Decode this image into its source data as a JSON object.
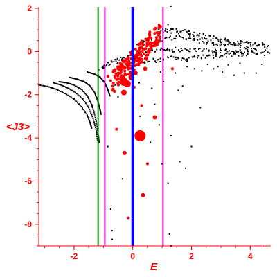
{
  "chart_data": {
    "type": "scatter",
    "xlabel": "E",
    "ylabel": "<J3>",
    "xlim": [
      -3.2,
      4.7
    ],
    "ylim": [
      -9.0,
      2.0
    ],
    "x_ticks": [
      -2,
      0,
      2,
      4
    ],
    "y_ticks": [
      2,
      0,
      -2,
      -4,
      -6,
      -8
    ],
    "grid": false,
    "colors": {
      "axis": "#ff0000",
      "background_points": "#000000",
      "highlighted_points": "#ff0000",
      "line_center": "#0000ff",
      "line_green": "#008000",
      "line_magenta": "#cc00cc"
    },
    "vertical_lines": [
      {
        "x": -1.18,
        "color": "#008000"
      },
      {
        "x": -0.95,
        "color": "#cc00cc"
      },
      {
        "x": 0.0,
        "color": "#0000ff"
      },
      {
        "x": 1.03,
        "color": "#cc00cc"
      }
    ],
    "black_curves": [
      {
        "points": [
          [
            -3.2,
            -1.55
          ],
          [
            -2.9,
            -1.62
          ],
          [
            -2.6,
            -1.75
          ],
          [
            -2.3,
            -1.95
          ],
          [
            -2.0,
            -2.2
          ],
          [
            -1.75,
            -2.55
          ],
          [
            -1.55,
            -2.95
          ],
          [
            -1.45,
            -3.3
          ],
          [
            -1.4,
            -3.55
          ]
        ]
      },
      {
        "points": [
          [
            -2.7,
            -1.45
          ],
          [
            -2.45,
            -1.55
          ],
          [
            -2.2,
            -1.7
          ],
          [
            -1.95,
            -1.9
          ],
          [
            -1.7,
            -2.2
          ],
          [
            -1.5,
            -2.6
          ],
          [
            -1.35,
            -3.1
          ],
          [
            -1.25,
            -3.6
          ],
          [
            -1.2,
            -4.1
          ]
        ]
      },
      {
        "points": [
          [
            -2.5,
            -1.4
          ],
          [
            -2.25,
            -1.45
          ],
          [
            -2.0,
            -1.55
          ],
          [
            -1.75,
            -1.75
          ],
          [
            -1.55,
            -2.05
          ],
          [
            -1.4,
            -2.45
          ],
          [
            -1.3,
            -2.9
          ],
          [
            -1.22,
            -3.4
          ],
          [
            -1.17,
            -3.9
          ],
          [
            -1.15,
            -4.2
          ]
        ]
      },
      {
        "points": [
          [
            -2.15,
            -1.2
          ],
          [
            -1.9,
            -1.28
          ],
          [
            -1.65,
            -1.4
          ],
          [
            -1.45,
            -1.6
          ],
          [
            -1.3,
            -1.9
          ],
          [
            -1.2,
            -2.25
          ],
          [
            -1.13,
            -2.6
          ],
          [
            -1.08,
            -2.9
          ]
        ]
      },
      {
        "points": [
          [
            -1.55,
            -0.95
          ],
          [
            -1.3,
            -1.05
          ],
          [
            -1.1,
            -1.2
          ],
          [
            -0.95,
            -1.45
          ],
          [
            -0.85,
            -1.75
          ],
          [
            -0.78,
            -2.05
          ]
        ]
      }
    ],
    "black_bands": [
      {
        "points": [
          [
            -1.1,
            -0.75
          ],
          [
            -0.8,
            -0.6
          ],
          [
            -0.5,
            -0.4
          ],
          [
            -0.2,
            -0.3
          ],
          [
            0.1,
            -0.2
          ],
          [
            0.5,
            -0.05
          ],
          [
            1.0,
            0.05
          ],
          [
            1.5,
            0.1
          ],
          [
            2.0,
            0.05
          ],
          [
            2.5,
            0.02
          ],
          [
            3.0,
            0.0
          ],
          [
            3.5,
            -0.02
          ],
          [
            4.0,
            0.0
          ],
          [
            4.6,
            0.02
          ]
        ]
      },
      {
        "points": [
          [
            0.2,
            0.35
          ],
          [
            0.6,
            0.5
          ],
          [
            1.0,
            0.6
          ],
          [
            1.5,
            0.65
          ],
          [
            2.0,
            0.55
          ],
          [
            2.5,
            0.42
          ],
          [
            3.0,
            0.32
          ],
          [
            3.5,
            0.25
          ],
          [
            4.0,
            0.22
          ],
          [
            4.6,
            0.2
          ]
        ]
      },
      {
        "points": [
          [
            0.3,
            -0.5
          ],
          [
            0.8,
            -0.38
          ],
          [
            1.3,
            -0.32
          ],
          [
            1.8,
            -0.35
          ],
          [
            2.3,
            -0.28
          ],
          [
            2.8,
            -0.22
          ],
          [
            3.3,
            -0.15
          ],
          [
            3.8,
            -0.12
          ],
          [
            4.6,
            -0.08
          ]
        ]
      },
      {
        "points": [
          [
            0.8,
            0.95
          ],
          [
            1.2,
            0.98
          ],
          [
            1.6,
            0.92
          ],
          [
            2.0,
            0.82
          ],
          [
            2.4,
            0.7
          ],
          [
            2.8,
            0.6
          ],
          [
            3.2,
            0.5
          ],
          [
            3.6,
            0.42
          ],
          [
            4.0,
            0.35
          ],
          [
            4.6,
            0.3
          ]
        ]
      }
    ],
    "black_scatter": [
      [
        -0.75,
        -7.3
      ],
      [
        -0.7,
        -8.3
      ],
      [
        -0.7,
        -8.7
      ],
      [
        -0.95,
        -8.5
      ],
      [
        -0.85,
        -4.4
      ],
      [
        -0.35,
        -5.9
      ],
      [
        -0.5,
        -2.1
      ],
      [
        -0.6,
        -1.55
      ],
      [
        0.22,
        -1.45
      ],
      [
        0.25,
        -3.0
      ],
      [
        0.65,
        -1.7
      ],
      [
        0.75,
        -2.45
      ],
      [
        0.9,
        -3.4
      ],
      [
        1.0,
        -5.2
      ],
      [
        1.2,
        -6.1
      ],
      [
        1.3,
        -3.9
      ],
      [
        1.6,
        -5.1
      ],
      [
        1.7,
        -1.6
      ],
      [
        1.8,
        -5.4
      ],
      [
        2.0,
        -4.4
      ],
      [
        2.3,
        -2.6
      ],
      [
        1.05,
        -1.4
      ],
      [
        1.45,
        -1.0
      ],
      [
        1.55,
        -1.8
      ],
      [
        0.95,
        -0.95
      ],
      [
        2.35,
        -0.9
      ],
      [
        2.75,
        -0.8
      ],
      [
        3.05,
        -0.95
      ],
      [
        3.45,
        -1.1
      ],
      [
        3.8,
        -1.0
      ],
      [
        4.2,
        -1.0
      ],
      [
        1.2,
        1.25
      ],
      [
        1.25,
        -8.45
      ],
      [
        1.3,
        -9.0
      ],
      [
        0.6,
        -4.2
      ],
      [
        1.85,
        -0.7
      ],
      [
        2.1,
        -0.8
      ],
      [
        2.55,
        -0.6
      ],
      [
        2.9,
        -0.7
      ],
      [
        3.25,
        -0.62
      ],
      [
        3.65,
        -0.55
      ],
      [
        4.4,
        -0.6
      ],
      [
        1.3,
        2.1
      ]
    ],
    "red_points": [
      {
        "x": 0.25,
        "y": -3.9,
        "r": 8
      },
      {
        "x": -0.3,
        "y": -1.4,
        "r": 6
      },
      {
        "x": -0.18,
        "y": -1.5,
        "r": 5
      },
      {
        "x": -0.3,
        "y": -1.9,
        "r": 4
      },
      {
        "x": -0.05,
        "y": -1.2,
        "r": 4
      },
      {
        "x": 0.1,
        "y": -1.0,
        "r": 3
      },
      {
        "x": -0.3,
        "y": -0.45,
        "r": 3
      },
      {
        "x": 0.42,
        "y": -0.8,
        "r": 3
      },
      {
        "x": 0.45,
        "y": -0.32,
        "r": 3
      },
      {
        "x": 0.75,
        "y": -3.05,
        "r": 3
      },
      {
        "x": -0.28,
        "y": -4.7,
        "r": 3
      },
      {
        "x": 0.35,
        "y": -6.65,
        "r": 3
      },
      {
        "x": 0.5,
        "y": -5.2,
        "r": 2
      },
      {
        "x": -0.62,
        "y": -1.85,
        "r": 2
      },
      {
        "x": -0.55,
        "y": -3.6,
        "r": 2
      },
      {
        "x": -0.15,
        "y": -7.7,
        "r": 2
      },
      {
        "x": 0.7,
        "y": 0.4,
        "r": 2
      },
      {
        "x": 0.88,
        "y": 0.75,
        "r": 2
      },
      {
        "x": 0.58,
        "y": 0.9,
        "r": 2
      },
      {
        "x": 1.35,
        "y": -0.8,
        "r": 2
      },
      {
        "x": -0.05,
        "y": -0.15,
        "r": 2
      },
      {
        "x": 0.05,
        "y": -1.65,
        "r": 2
      },
      {
        "x": 0.15,
        "y": -0.6,
        "r": 2
      },
      {
        "x": 0.25,
        "y": -0.3,
        "r": 2
      },
      {
        "x": -0.5,
        "y": -1.0,
        "r": 2
      },
      {
        "x": -0.4,
        "y": -1.2,
        "r": 2
      },
      {
        "x": -0.42,
        "y": -0.85,
        "r": 2
      },
      {
        "x": -0.68,
        "y": -1.6,
        "r": 2
      },
      {
        "x": -0.75,
        "y": -1.35,
        "r": 2
      },
      {
        "x": -0.85,
        "y": -1.15,
        "r": 2
      },
      {
        "x": 0.3,
        "y": -2.5,
        "r": 2
      },
      {
        "x": 0.62,
        "y": 0.15,
        "r": 2
      }
    ],
    "red_cluster": {
      "x_range": [
        -0.7,
        0.95
      ],
      "y_range": [
        -2.0,
        0.9
      ],
      "count": 180,
      "r": 2
    }
  }
}
